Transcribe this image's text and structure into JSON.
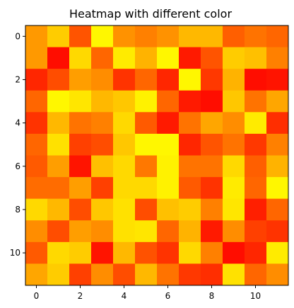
{
  "chart_data": {
    "type": "heatmap",
    "title": "Heatmap with different color",
    "xlabel": "",
    "ylabel": "",
    "colormap": "autumn",
    "colormap_stops": [
      "#ff0000",
      "#ff8000",
      "#ffff00"
    ],
    "n_rows": 12,
    "n_cols": 12,
    "xlim": [
      -0.5,
      11.5
    ],
    "ylim": [
      11.5,
      -0.5
    ],
    "x_ticks": [
      0,
      2,
      4,
      6,
      8,
      10
    ],
    "y_ticks": [
      0,
      2,
      4,
      6,
      8,
      10
    ],
    "values": [
      [
        0.6,
        0.8,
        0.33,
        0.97,
        0.57,
        0.5,
        0.57,
        0.72,
        0.72,
        0.37,
        0.45,
        0.4
      ],
      [
        0.6,
        0.05,
        0.85,
        0.4,
        0.92,
        0.7,
        0.97,
        0.1,
        0.33,
        0.8,
        0.75,
        0.5
      ],
      [
        0.15,
        0.3,
        0.62,
        0.55,
        0.2,
        0.4,
        0.15,
        0.97,
        0.22,
        0.7,
        0.05,
        0.08
      ],
      [
        0.4,
        0.97,
        0.9,
        0.72,
        0.78,
        0.95,
        0.4,
        0.1,
        0.05,
        0.78,
        0.45,
        0.65
      ],
      [
        0.2,
        0.72,
        0.45,
        0.5,
        0.85,
        0.35,
        0.1,
        0.45,
        0.65,
        0.55,
        0.92,
        0.18
      ],
      [
        0.4,
        0.88,
        0.25,
        0.3,
        0.78,
        0.97,
        0.97,
        0.15,
        0.33,
        0.45,
        0.22,
        0.5
      ],
      [
        0.35,
        0.62,
        0.08,
        0.75,
        0.85,
        0.47,
        0.95,
        0.45,
        0.45,
        0.85,
        0.37,
        0.7
      ],
      [
        0.42,
        0.42,
        0.62,
        0.25,
        0.85,
        0.85,
        0.95,
        0.35,
        0.2,
        0.92,
        0.4,
        0.97
      ],
      [
        0.85,
        0.72,
        0.3,
        0.78,
        0.88,
        0.3,
        0.75,
        0.8,
        0.5,
        0.9,
        0.12,
        0.4
      ],
      [
        0.55,
        0.3,
        0.62,
        0.55,
        0.88,
        0.9,
        0.4,
        0.7,
        0.1,
        0.55,
        0.25,
        0.2
      ],
      [
        0.35,
        0.85,
        0.8,
        0.08,
        0.72,
        0.32,
        0.2,
        0.85,
        0.5,
        0.05,
        0.15,
        0.92
      ],
      [
        0.65,
        0.8,
        0.25,
        0.55,
        0.3,
        0.72,
        0.45,
        0.22,
        0.18,
        0.88,
        0.4,
        0.55
      ]
    ]
  }
}
